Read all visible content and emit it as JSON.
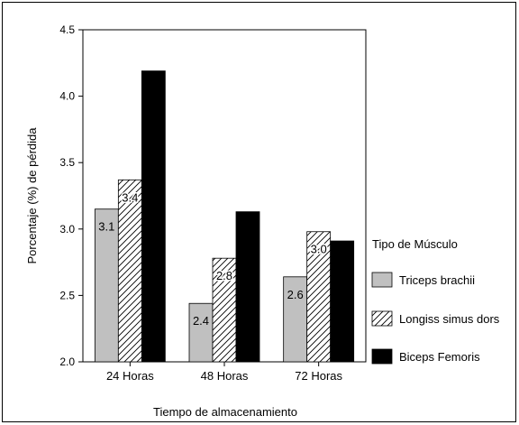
{
  "chart_data": {
    "type": "bar",
    "categories": [
      "24 Horas",
      "48 Horas",
      "72 Horas"
    ],
    "series": [
      {
        "name": "Triceps brachii",
        "values": [
          3.15,
          2.44,
          2.64
        ],
        "labels": [
          "3.1",
          "2.4",
          "2.6"
        ],
        "fill": "#c0c0c0",
        "pattern": "solid"
      },
      {
        "name": "Longiss simus dors",
        "values": [
          3.37,
          2.78,
          2.98
        ],
        "labels": [
          "3.4",
          "2.8",
          "3.0"
        ],
        "fill": "#ffffff",
        "pattern": "hatch"
      },
      {
        "name": "Biceps Femoris",
        "values": [
          4.19,
          3.13,
          2.91
        ],
        "labels": [
          "4.2",
          "3.1",
          "2.9"
        ],
        "fill": "#000000",
        "pattern": "solid"
      }
    ],
    "xlabel": "Tiempo de almacenamiento",
    "ylabel": "Porcentaje (%) de pérdida",
    "ylim": [
      2.0,
      4.5
    ],
    "yticks": [
      "2.0",
      "2.5",
      "3.0",
      "3.5",
      "4.0",
      "4.5"
    ],
    "legend_title": "Tipo de Músculo",
    "legend_position": "right",
    "grid": false
  }
}
